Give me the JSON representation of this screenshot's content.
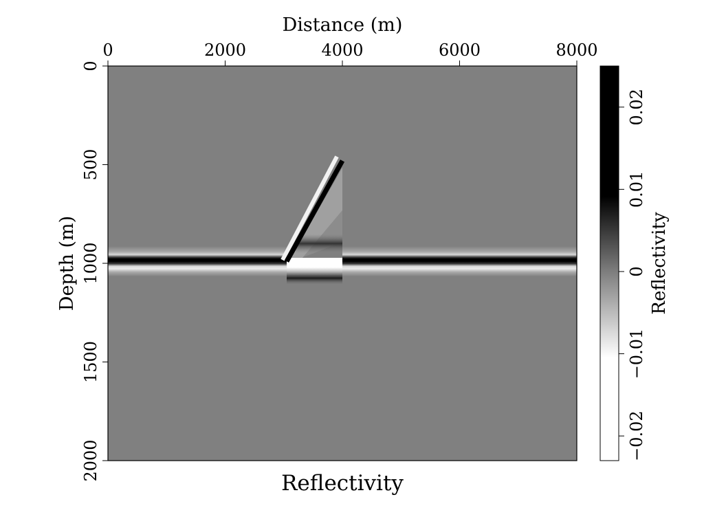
{
  "chart_data": {
    "type": "heatmap",
    "title": "Reflectivity",
    "xlabel": "Distance (m)",
    "ylabel": "Depth (m)",
    "x_axis_position": "top",
    "y_axis_inverted": true,
    "xlim": [
      0,
      8000
    ],
    "ylim": [
      0,
      2000
    ],
    "x_ticks": [
      0,
      2000,
      4000,
      6000,
      8000
    ],
    "y_ticks": [
      0,
      500,
      1000,
      1500,
      2000
    ],
    "colormap": "gray_reversed",
    "colorbar": {
      "label": "Reflectivity",
      "range": [
        -0.023,
        0.025
      ],
      "ticks": [
        0.02,
        0.01,
        0,
        -0.01,
        -0.02
      ],
      "tick_labels": [
        "0.02",
        "0.01",
        "0",
        "−0.01",
        "−0.02"
      ],
      "placement": "right"
    },
    "background_value": 0,
    "features": [
      {
        "name": "flat reflector",
        "x_range": [
          0,
          8000
        ],
        "depth": 990,
        "peak": 0.025,
        "side_lobe": -0.012
      },
      {
        "name": "dipping reflector",
        "from": {
          "x": 3050,
          "depth": 990
        },
        "to": {
          "x": 4000,
          "depth": 480
        },
        "peak": 0.025,
        "side_lobe": -0.02
      },
      {
        "name": "wedge bright zone",
        "x_range": [
          3050,
          4000
        ],
        "depth_range": [
          1000,
          1060
        ],
        "value": -0.023
      },
      {
        "name": "wedge dark band lower",
        "x_range": [
          3050,
          4000
        ],
        "depth": 1075,
        "value": 0.018
      },
      {
        "name": "wedge dark band upper",
        "x_range": [
          3200,
          4000
        ],
        "depth": 900,
        "value": 0.01
      }
    ]
  },
  "colors": {
    "background_gray": "#808080",
    "positive": "#000000",
    "negative": "#ffffff",
    "frame": "#000000"
  }
}
